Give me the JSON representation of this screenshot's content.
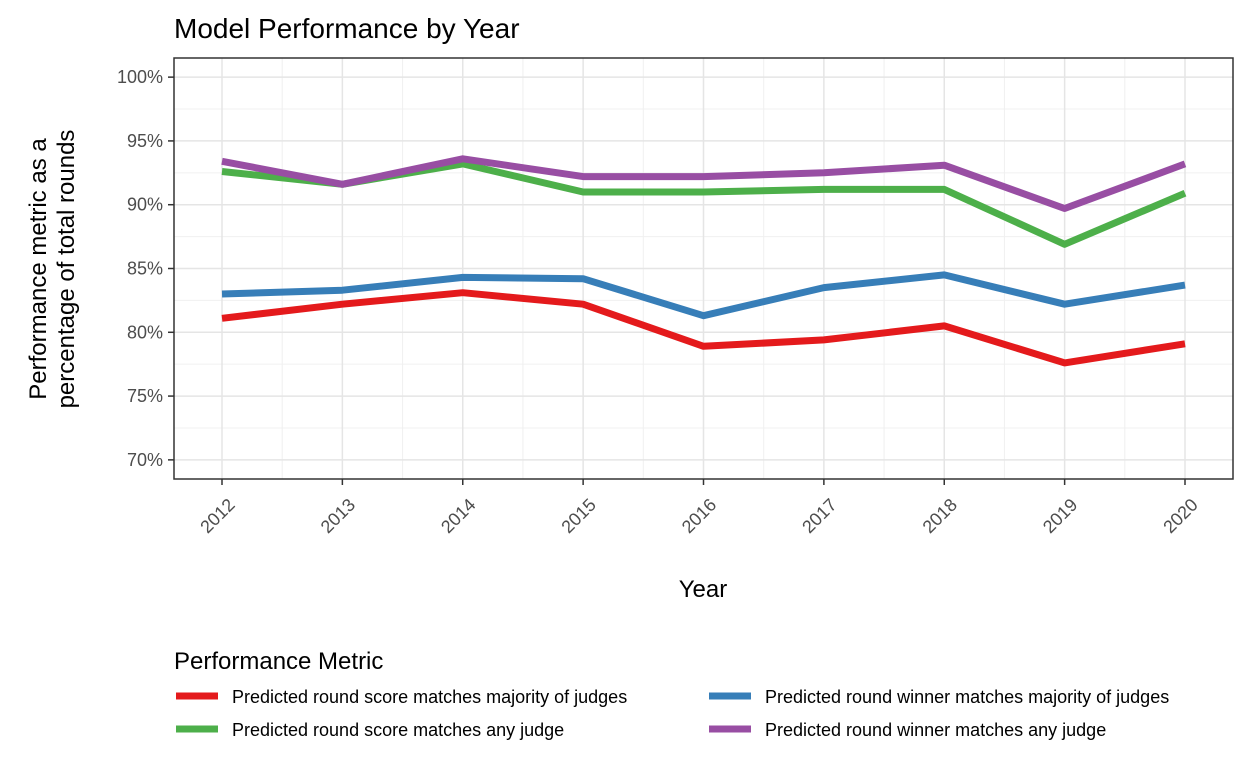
{
  "chart_data": {
    "type": "line",
    "title": "Model Performance by Year",
    "xlabel": "Year",
    "ylabel_lines": [
      "Performance metric as a",
      "percentage of total rounds"
    ],
    "x": [
      2012,
      2013,
      2014,
      2015,
      2016,
      2017,
      2018,
      2019,
      2020
    ],
    "ylim": [
      68.5,
      101.5
    ],
    "yticks": [
      70,
      75,
      80,
      85,
      90,
      95,
      100
    ],
    "ytick_labels": [
      "70%",
      "75%",
      "80%",
      "85%",
      "90%",
      "95%",
      "100%"
    ],
    "grid": true,
    "legend": {
      "title": "Performance Metric",
      "position": "bottom"
    },
    "series": [
      {
        "name": "Predicted round score matches majority of judges",
        "color": "#e41a1c",
        "values": [
          81.1,
          82.2,
          83.1,
          82.2,
          78.9,
          79.4,
          80.5,
          77.6,
          79.1
        ]
      },
      {
        "name": "Predicted round winner matches majority of judges",
        "color": "#377eb8",
        "values": [
          83.0,
          83.3,
          84.3,
          84.2,
          81.3,
          83.5,
          84.5,
          82.2,
          83.7
        ]
      },
      {
        "name": "Predicted round score matches any judge",
        "color": "#4daf4a",
        "values": [
          92.6,
          91.6,
          93.2,
          91.0,
          91.0,
          91.2,
          91.2,
          86.9,
          90.9
        ]
      },
      {
        "name": "Predicted round winner matches any judge",
        "color": "#984ea3",
        "values": [
          93.4,
          91.6,
          93.6,
          92.2,
          92.2,
          92.5,
          93.1,
          89.7,
          93.2
        ]
      }
    ]
  }
}
